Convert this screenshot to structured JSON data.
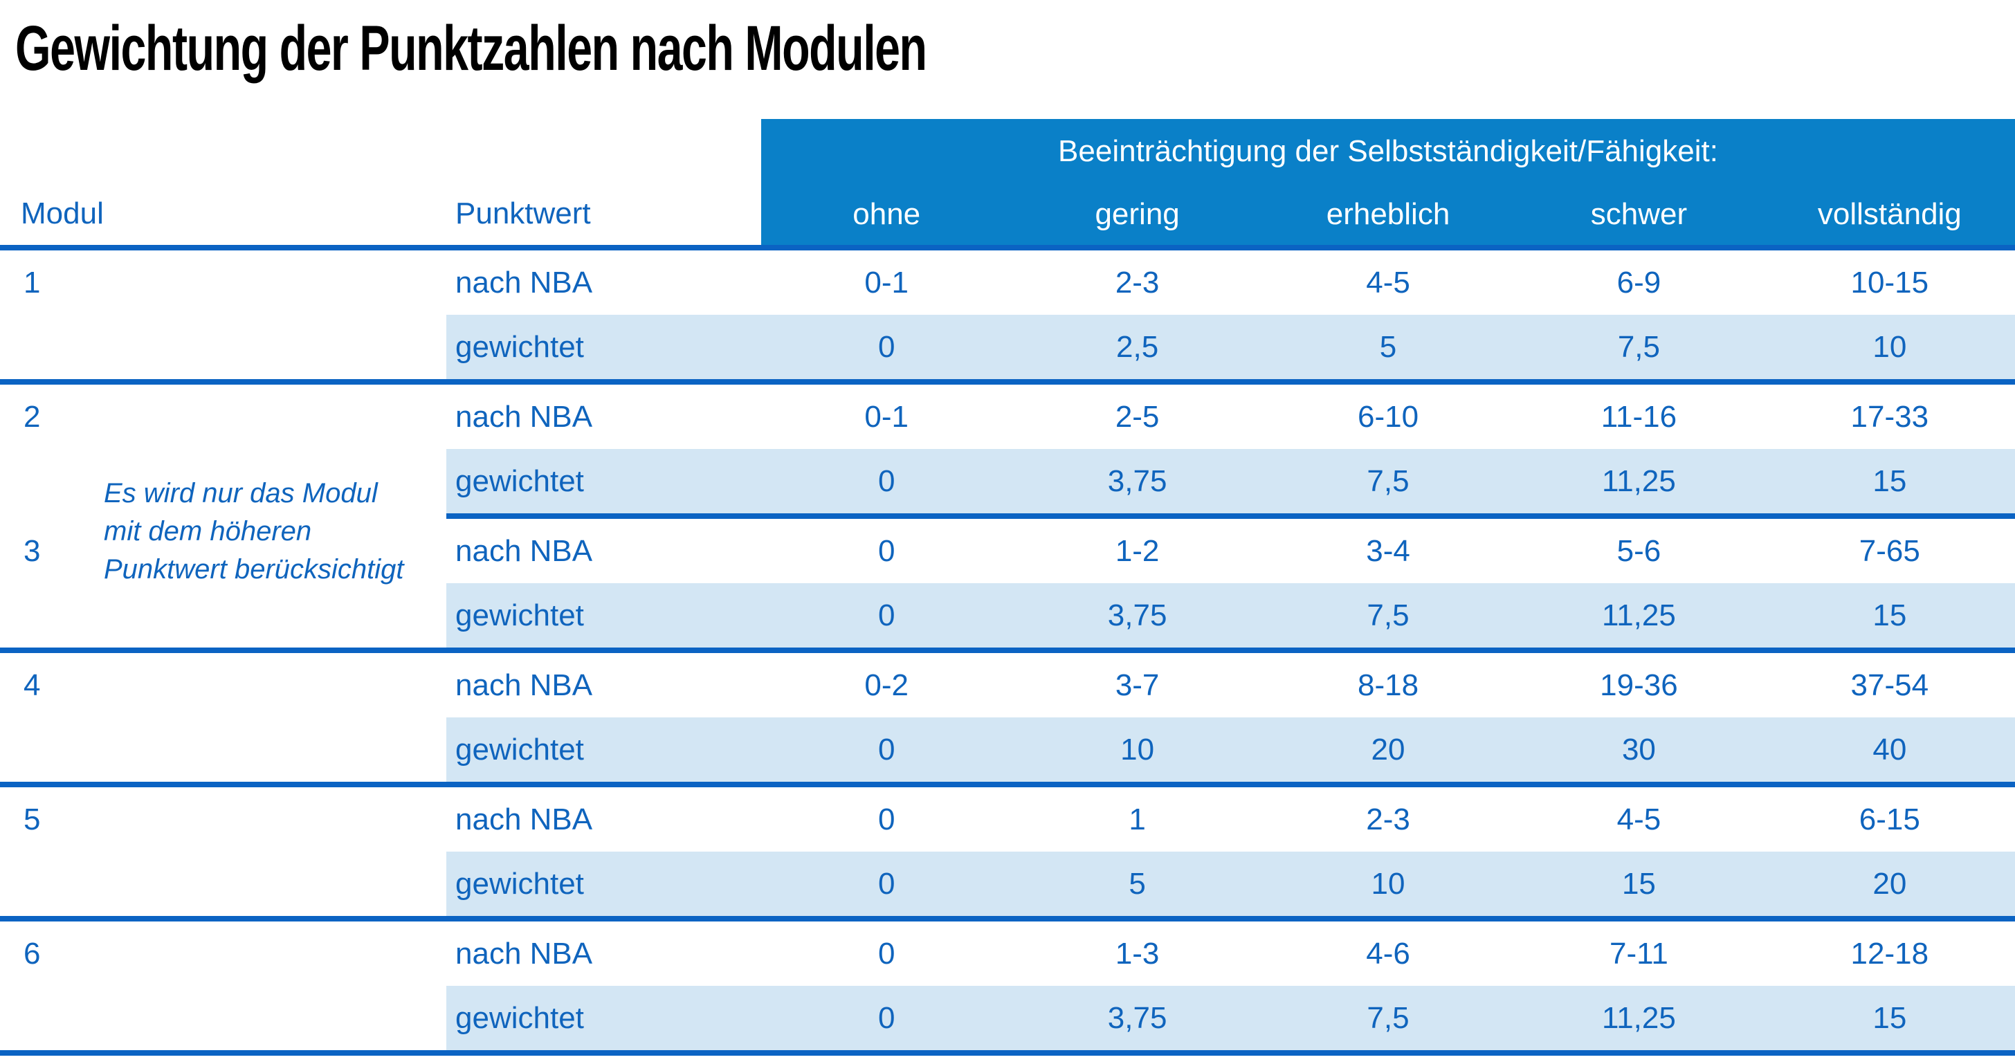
{
  "title": "Gewichtung der Punktzahlen nach Modulen",
  "colors": {
    "header_blue": "#0a80c8",
    "line_blue": "#0b63c3",
    "text_blue": "#0f64bd",
    "row_light_blue": "#d3e6f4",
    "title_black": "#000000"
  },
  "table": {
    "col_headers": {
      "modul": "Modul",
      "punktwert": "Punktwert",
      "impairment_title": "Beeinträchtigung der Selbstständigkeit/Fähigkeit:",
      "levels": [
        "ohne",
        "gering",
        "erheblich",
        "schwer",
        "vollständig"
      ]
    },
    "row_labels": {
      "nba": "nach NBA",
      "weighted": "gewichtet"
    },
    "note": {
      "lines": [
        "Es wird nur das Modul",
        "mit dem höheren",
        "Punktwert berücksichtigt"
      ]
    },
    "modules": [
      {
        "nr": "1",
        "nba": [
          "0-1",
          "2-3",
          "4-5",
          "6-9",
          "10-15"
        ],
        "weighted": [
          "0",
          "2,5",
          "5",
          "7,5",
          "10"
        ]
      },
      {
        "nr": "2",
        "nba": [
          "0-1",
          "2-5",
          "6-10",
          "11-16",
          "17-33"
        ],
        "weighted": [
          "0",
          "3,75",
          "7,5",
          "11,25",
          "15"
        ]
      },
      {
        "nr": "3",
        "nba": [
          "0",
          "1-2",
          "3-4",
          "5-6",
          "7-65"
        ],
        "weighted": [
          "0",
          "3,75",
          "7,5",
          "11,25",
          "15"
        ]
      },
      {
        "nr": "4",
        "nba": [
          "0-2",
          "3-7",
          "8-18",
          "19-36",
          "37-54"
        ],
        "weighted": [
          "0",
          "10",
          "20",
          "30",
          "40"
        ]
      },
      {
        "nr": "5",
        "nba": [
          "0",
          "1",
          "2-3",
          "4-5",
          "6-15"
        ],
        "weighted": [
          "0",
          "5",
          "10",
          "15",
          "20"
        ]
      },
      {
        "nr": "6",
        "nba": [
          "0",
          "1-3",
          "4-6",
          "7-11",
          "12-18"
        ],
        "weighted": [
          "0",
          "3,75",
          "7,5",
          "11,25",
          "15"
        ]
      }
    ]
  }
}
